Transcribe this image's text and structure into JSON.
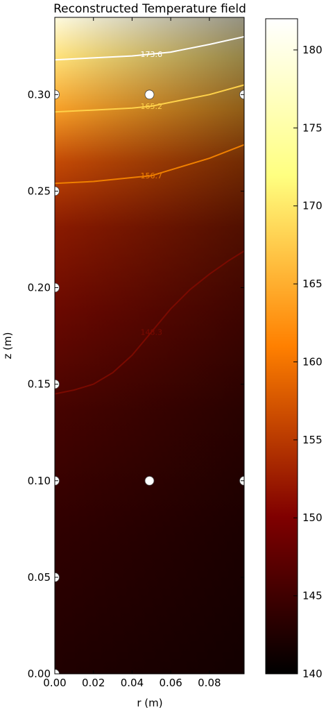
{
  "chart_data": {
    "type": "heatmap",
    "title": "Reconstructed Temperature field",
    "xlabel": "r (m)",
    "ylabel": "z (m)",
    "xlim": [
      0.0,
      0.098
    ],
    "ylim": [
      0.0,
      0.34
    ],
    "x_ticks": [
      0.0,
      0.02,
      0.04,
      0.06,
      0.08
    ],
    "x_tick_labels": [
      "0.00",
      "0.02",
      "0.04",
      "0.06",
      "0.08"
    ],
    "y_ticks": [
      0.0,
      0.05,
      0.1,
      0.15,
      0.2,
      0.25,
      0.3
    ],
    "y_tick_labels": [
      "0.00",
      "0.05",
      "0.10",
      "0.15",
      "0.20",
      "0.25",
      "0.30"
    ],
    "colormap": "afmhot",
    "colorbar": {
      "min": 140,
      "max": 182,
      "ticks": [
        140,
        145,
        150,
        155,
        160,
        165,
        170,
        175,
        180
      ],
      "tick_labels": [
        "140",
        "145",
        "150",
        "155",
        "160",
        "165",
        "170",
        "175",
        "180"
      ],
      "colors": [
        "#000000",
        "#800000",
        "#ff8000",
        "#ffff80",
        "#ffffff"
      ]
    },
    "contours": [
      {
        "label": "148.3",
        "value": 148.3,
        "color": "#7a0a00",
        "points": [
          [
            0.0,
            0.145
          ],
          [
            0.01,
            0.147
          ],
          [
            0.02,
            0.15
          ],
          [
            0.03,
            0.156
          ],
          [
            0.04,
            0.165
          ],
          [
            0.05,
            0.177
          ],
          [
            0.06,
            0.189
          ],
          [
            0.07,
            0.199
          ],
          [
            0.08,
            0.207
          ],
          [
            0.09,
            0.214
          ],
          [
            0.098,
            0.219
          ]
        ]
      },
      {
        "label": "156.7",
        "value": 156.7,
        "color": "#f08000",
        "points": [
          [
            0.0,
            0.254
          ],
          [
            0.02,
            0.255
          ],
          [
            0.04,
            0.257
          ],
          [
            0.05,
            0.258
          ],
          [
            0.06,
            0.261
          ],
          [
            0.08,
            0.267
          ],
          [
            0.098,
            0.274
          ]
        ]
      },
      {
        "label": "165.2",
        "value": 165.2,
        "color": "#ffd24a",
        "points": [
          [
            0.0,
            0.291
          ],
          [
            0.02,
            0.292
          ],
          [
            0.04,
            0.293
          ],
          [
            0.05,
            0.294
          ],
          [
            0.06,
            0.296
          ],
          [
            0.08,
            0.3
          ],
          [
            0.098,
            0.305
          ]
        ]
      },
      {
        "label": "173.6",
        "value": 173.6,
        "color": "#ffffff",
        "points": [
          [
            0.0,
            0.318
          ],
          [
            0.02,
            0.319
          ],
          [
            0.04,
            0.32
          ],
          [
            0.05,
            0.321
          ],
          [
            0.06,
            0.322
          ],
          [
            0.08,
            0.326
          ],
          [
            0.098,
            0.33
          ]
        ]
      }
    ],
    "sensors": [
      [
        0.0,
        0.0
      ],
      [
        0.0,
        0.05
      ],
      [
        0.0,
        0.1
      ],
      [
        0.0,
        0.15
      ],
      [
        0.0,
        0.2
      ],
      [
        0.0,
        0.25
      ],
      [
        0.0,
        0.3
      ],
      [
        0.049,
        0.1
      ],
      [
        0.049,
        0.3
      ],
      [
        0.098,
        0.1
      ],
      [
        0.098,
        0.3
      ]
    ]
  }
}
